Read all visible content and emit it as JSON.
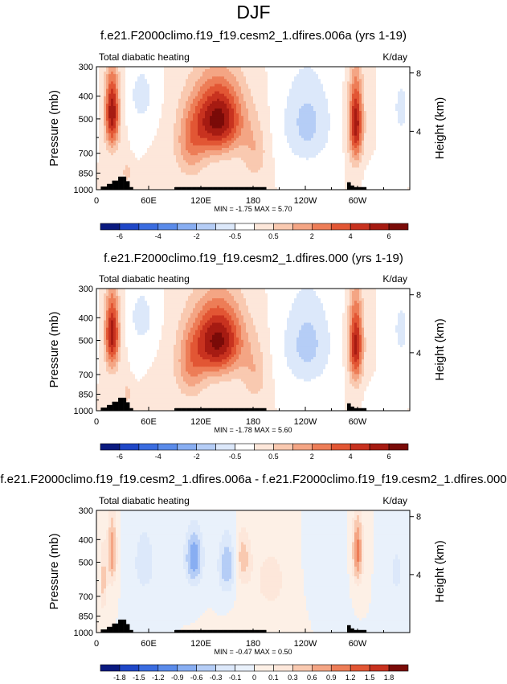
{
  "title": "DJF",
  "chart_data": [
    {
      "type": "heatmap",
      "title": "f.e21.F2000climo.f19_f19.cesm2_1.dfires.006a (yrs 1-19)",
      "left_label": "Total diabatic heating",
      "units": "K/day",
      "ylabel": "Pressure (mb)",
      "ylabel_right": "Height (km)",
      "yticks": [
        "300",
        "400",
        "500",
        "700",
        "850",
        "1000"
      ],
      "yticks_right": [
        "8",
        "4"
      ],
      "xticks": [
        "0",
        "60E",
        "120E",
        "180",
        "120W",
        "60W"
      ],
      "stats": "MIN = -1.75  MAX =  5.70",
      "colorbar_labels": [
        "-6",
        "-4",
        "-2",
        "-0.5",
        "0.5",
        "2",
        "4",
        "6"
      ],
      "colors": [
        "#0a1a80",
        "#1f47c7",
        "#3a6ce0",
        "#5a8bea",
        "#88aef2",
        "#b5cdf6",
        "#dce8fa",
        "#ffffff",
        "#fde7da",
        "#f9c9b0",
        "#f4a584",
        "#ed7d57",
        "#e25634",
        "#c8321f",
        "#a61b12",
        "#7a0b08"
      ],
      "scale": 6,
      "features": [
        {
          "lon": 18,
          "p": 470,
          "a": 5.2,
          "sx": 8,
          "sp": 170
        },
        {
          "lon": 140,
          "p": 500,
          "a": 5.6,
          "sx": 28,
          "sp": 180
        },
        {
          "lon": 108,
          "p": 650,
          "a": 2.0,
          "sx": 18,
          "sp": 220
        },
        {
          "lon": 182,
          "p": 700,
          "a": 1.3,
          "sx": 14,
          "sp": 200
        },
        {
          "lon": 52,
          "p": 400,
          "a": -1.2,
          "sx": 14,
          "sp": 110
        },
        {
          "lon": 242,
          "p": 520,
          "a": -1.75,
          "sx": 28,
          "sp": 240
        },
        {
          "lon": 298,
          "p": 520,
          "a": 5.0,
          "sx": 8,
          "sp": 210
        },
        {
          "lon": 350,
          "p": 450,
          "a": -1.0,
          "sx": 10,
          "sp": 150
        },
        {
          "lon": 35,
          "p": 850,
          "a": 1.5,
          "sx": 4,
          "sp": 70
        },
        {
          "lon": 320,
          "p": 880,
          "a": -0.5,
          "sx": 10,
          "sp": 80
        }
      ]
    },
    {
      "type": "heatmap",
      "title": "f.e21.F2000climo.f19_f19.cesm2_1.dfires.000 (yrs 1-19)",
      "left_label": "Total diabatic heating",
      "units": "K/day",
      "ylabel": "Pressure (mb)",
      "ylabel_right": "Height (km)",
      "yticks": [
        "300",
        "400",
        "500",
        "700",
        "850",
        "1000"
      ],
      "yticks_right": [
        "8",
        "4"
      ],
      "xticks": [
        "0",
        "60E",
        "120E",
        "180",
        "120W",
        "60W"
      ],
      "stats": "MIN = -1.78  MAX =  5.60",
      "colorbar_labels": [
        "-6",
        "-4",
        "-2",
        "-0.5",
        "0.5",
        "2",
        "4",
        "6"
      ],
      "colors": [
        "#0a1a80",
        "#1f47c7",
        "#3a6ce0",
        "#5a8bea",
        "#88aef2",
        "#b5cdf6",
        "#dce8fa",
        "#ffffff",
        "#fde7da",
        "#f9c9b0",
        "#f4a584",
        "#ed7d57",
        "#e25634",
        "#c8321f",
        "#a61b12",
        "#7a0b08"
      ],
      "scale": 6,
      "features": [
        {
          "lon": 18,
          "p": 470,
          "a": 5.0,
          "sx": 8,
          "sp": 170
        },
        {
          "lon": 140,
          "p": 500,
          "a": 5.5,
          "sx": 28,
          "sp": 180
        },
        {
          "lon": 108,
          "p": 650,
          "a": 2.0,
          "sx": 18,
          "sp": 220
        },
        {
          "lon": 182,
          "p": 700,
          "a": 1.3,
          "sx": 14,
          "sp": 200
        },
        {
          "lon": 52,
          "p": 400,
          "a": -1.2,
          "sx": 14,
          "sp": 110
        },
        {
          "lon": 242,
          "p": 520,
          "a": -1.78,
          "sx": 28,
          "sp": 240
        },
        {
          "lon": 298,
          "p": 520,
          "a": 4.8,
          "sx": 8,
          "sp": 210
        },
        {
          "lon": 350,
          "p": 450,
          "a": -1.0,
          "sx": 10,
          "sp": 150
        },
        {
          "lon": 35,
          "p": 850,
          "a": 1.4,
          "sx": 4,
          "sp": 70
        },
        {
          "lon": 320,
          "p": 880,
          "a": -0.5,
          "sx": 10,
          "sp": 80
        }
      ]
    },
    {
      "type": "heatmap",
      "title": "f.e21.F2000climo.f19_f19.cesm2_1.dfires.006a - f.e21.F2000climo.f19_f19.cesm2_1.dfires.000",
      "left_label": "Total diabatic heating",
      "units": "K/day",
      "ylabel": "Pressure (mb)",
      "ylabel_right": "Height (km)",
      "yticks": [
        "300",
        "400",
        "500",
        "700",
        "850",
        "1000"
      ],
      "yticks_right": [
        "8",
        "4"
      ],
      "xticks": [
        "0",
        "60E",
        "120E",
        "180",
        "120W",
        "60W"
      ],
      "stats": "MIN = -0.47  MAX =  0.50",
      "colorbar_labels": [
        "-1.8",
        "-1.5",
        "-1.2",
        "-0.9",
        "-0.6",
        "-0.3",
        "-0.1",
        "0",
        "0.1",
        "0.3",
        "0.6",
        "0.9",
        "1.2",
        "1.5",
        "1.8"
      ],
      "colors": [
        "#0a1a80",
        "#1f47c7",
        "#3a6ce0",
        "#5a8bea",
        "#88aef2",
        "#b5cdf6",
        "#dce8fa",
        "#e9f1fb",
        "#fdf0e6",
        "#fde7da",
        "#f9c9b0",
        "#f4a584",
        "#ed7d57",
        "#e25634",
        "#c8321f",
        "#7a0b08"
      ],
      "scale": 0.8,
      "features": [
        {
          "lon": 18,
          "p": 450,
          "a": 0.4,
          "sx": 5,
          "sp": 150
        },
        {
          "lon": 8,
          "p": 600,
          "a": 0.25,
          "sx": 4,
          "sp": 200
        },
        {
          "lon": 300,
          "p": 450,
          "a": 0.45,
          "sx": 6,
          "sp": 150
        },
        {
          "lon": 112,
          "p": 480,
          "a": -0.4,
          "sx": 10,
          "sp": 130
        },
        {
          "lon": 150,
          "p": 520,
          "a": -0.3,
          "sx": 10,
          "sp": 150
        },
        {
          "lon": 168,
          "p": 480,
          "a": 0.25,
          "sx": 8,
          "sp": 120
        },
        {
          "lon": 200,
          "p": 600,
          "a": 0.12,
          "sx": 30,
          "sp": 300
        },
        {
          "lon": 55,
          "p": 500,
          "a": -0.15,
          "sx": 15,
          "sp": 200
        },
        {
          "lon": 260,
          "p": 500,
          "a": -0.1,
          "sx": 20,
          "sp": 250
        },
        {
          "lon": 345,
          "p": 550,
          "a": -0.12,
          "sx": 10,
          "sp": 200
        }
      ]
    }
  ]
}
